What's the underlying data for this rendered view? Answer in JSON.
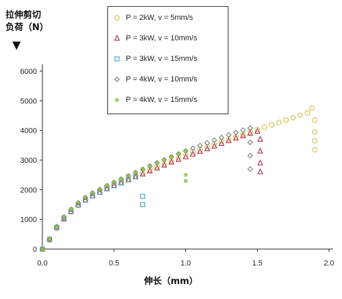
{
  "chart_data": {
    "type": "scatter",
    "title": "",
    "ylabel_lines": [
      "拉伸剪切",
      "负荷（N）"
    ],
    "ylabel_arrow": "▼",
    "xlabel": "伸长（mm）",
    "xlim": [
      0,
      2.0
    ],
    "ylim": [
      0,
      6000
    ],
    "x_ticks": [
      "0.0",
      "0.5",
      "1.0",
      "1.5",
      "2.0"
    ],
    "y_ticks": [
      "0",
      "1000",
      "2000",
      "3000",
      "4000",
      "5000",
      "6000"
    ],
    "legend_position": "top-center",
    "grid": false,
    "series": [
      {
        "name": "P = 2kW, v = 5mm/s",
        "marker": "circle",
        "color": "#d4c04a",
        "x": [
          0.0,
          0.05,
          0.1,
          0.15,
          0.2,
          0.25,
          0.3,
          0.35,
          0.4,
          0.45,
          0.5,
          0.55,
          0.6,
          0.65,
          0.7,
          0.75,
          0.8,
          0.85,
          0.9,
          0.95,
          1.0,
          1.05,
          1.1,
          1.15,
          1.2,
          1.25,
          1.3,
          1.35,
          1.4,
          1.45,
          1.5,
          1.55,
          1.6,
          1.65,
          1.7,
          1.75,
          1.8,
          1.85,
          1.88,
          1.9,
          1.9,
          1.9,
          1.9
        ],
        "y": [
          0,
          300,
          700,
          1000,
          1250,
          1480,
          1650,
          1800,
          1920,
          2050,
          2150,
          2250,
          2360,
          2470,
          2580,
          2680,
          2780,
          2880,
          2980,
          3080,
          3180,
          3270,
          3360,
          3450,
          3540,
          3630,
          3710,
          3790,
          3870,
          3950,
          4030,
          4110,
          4190,
          4270,
          4350,
          4430,
          4510,
          4590,
          4750,
          4350,
          3950,
          3650,
          3350
        ]
      },
      {
        "name": "P = 3kW, v = 10mm/s",
        "marker": "triangle",
        "color": "#b0254a",
        "x": [
          0.0,
          0.05,
          0.1,
          0.15,
          0.2,
          0.25,
          0.3,
          0.35,
          0.4,
          0.45,
          0.5,
          0.55,
          0.6,
          0.65,
          0.7,
          0.75,
          0.8,
          0.85,
          0.9,
          0.95,
          1.0,
          1.05,
          1.1,
          1.15,
          1.2,
          1.25,
          1.3,
          1.35,
          1.4,
          1.45,
          1.5,
          1.52,
          1.52,
          1.52,
          1.52
        ],
        "y": [
          0,
          320,
          720,
          1020,
          1270,
          1480,
          1650,
          1790,
          1910,
          2030,
          2130,
          2230,
          2330,
          2430,
          2530,
          2630,
          2730,
          2830,
          2930,
          3020,
          3110,
          3200,
          3290,
          3380,
          3470,
          3560,
          3650,
          3740,
          3820,
          3900,
          3970,
          3700,
          3300,
          2900,
          2600
        ]
      },
      {
        "name": "P = 3kW, v = 15mm/s",
        "marker": "square",
        "color": "#3aa0bf",
        "x": [
          0.0,
          0.05,
          0.1,
          0.15,
          0.2,
          0.25,
          0.3,
          0.35,
          0.4,
          0.45,
          0.5,
          0.55,
          0.6,
          0.65,
          0.7,
          0.7
        ],
        "y": [
          0,
          330,
          730,
          1040,
          1280,
          1490,
          1660,
          1800,
          1920,
          2040,
          2140,
          2240,
          2340,
          2440,
          1780,
          1500
        ]
      },
      {
        "name": "P = 4kW, v = 10mm/s",
        "marker": "diamond",
        "color": "#7a7a7a",
        "x": [
          0.0,
          0.05,
          0.1,
          0.15,
          0.2,
          0.25,
          0.3,
          0.35,
          0.4,
          0.45,
          0.5,
          0.55,
          0.6,
          0.65,
          0.7,
          0.75,
          0.8,
          0.85,
          0.9,
          0.95,
          1.0,
          1.05,
          1.1,
          1.15,
          1.2,
          1.25,
          1.3,
          1.35,
          1.4,
          1.45,
          1.45,
          1.45,
          1.45
        ],
        "y": [
          0,
          340,
          760,
          1080,
          1340,
          1560,
          1740,
          1890,
          2010,
          2140,
          2250,
          2360,
          2470,
          2580,
          2690,
          2800,
          2910,
          3010,
          3110,
          3210,
          3310,
          3400,
          3490,
          3580,
          3670,
          3760,
          3850,
          3930,
          4010,
          4080,
          3600,
          3150,
          2700
        ]
      },
      {
        "name": "P = 4kW, v = 15mm/s",
        "marker": "asterisk",
        "color": "#8fbf4a",
        "x": [
          0.0,
          0.05,
          0.1,
          0.15,
          0.2,
          0.25,
          0.3,
          0.35,
          0.4,
          0.45,
          0.5,
          0.55,
          0.6,
          0.65,
          0.7,
          0.75,
          0.8,
          0.85,
          0.9,
          0.95,
          1.0,
          1.0,
          1.0
        ],
        "y": [
          0,
          350,
          770,
          1090,
          1350,
          1570,
          1750,
          1900,
          2020,
          2150,
          2260,
          2370,
          2480,
          2590,
          2700,
          2810,
          2920,
          3020,
          3120,
          3220,
          3320,
          2500,
          2300
        ]
      }
    ]
  }
}
